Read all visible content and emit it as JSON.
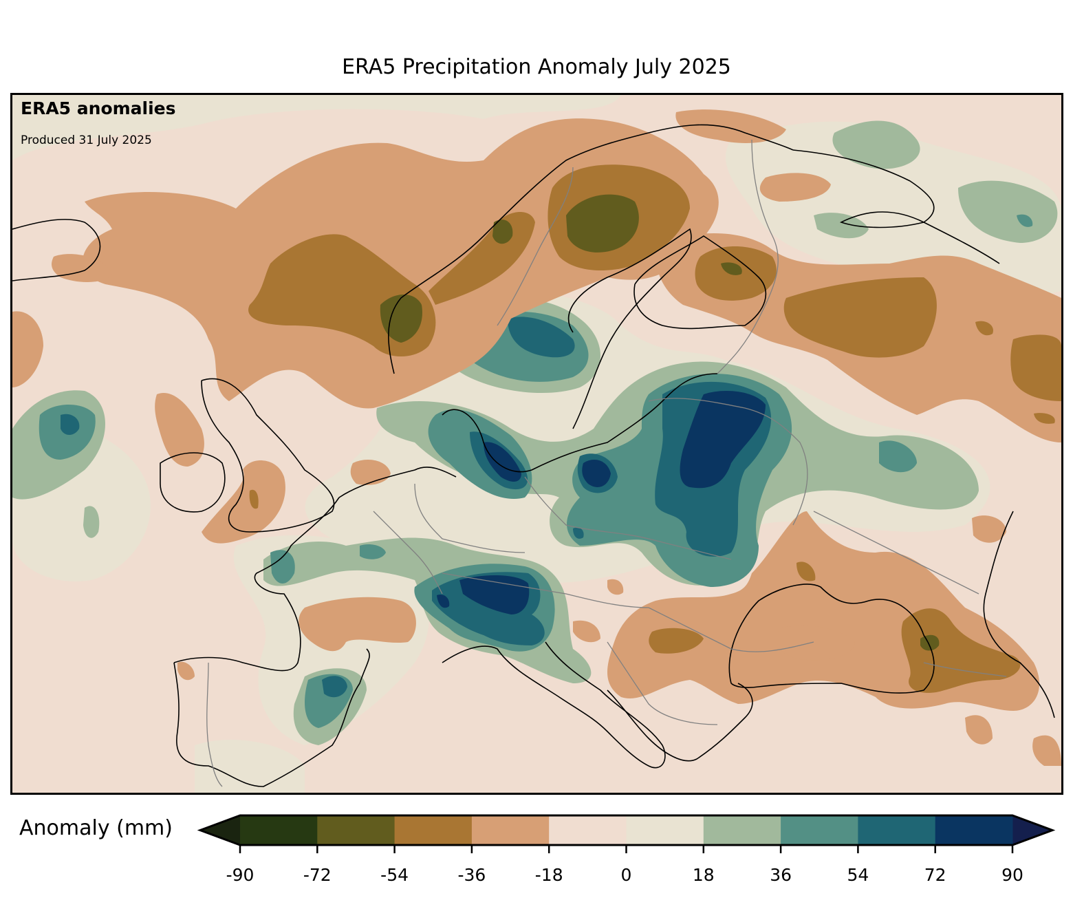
{
  "title": "ERA5 Precipitation Anomaly July 2025",
  "annotation": {
    "heading": "ERA5 anomalies",
    "produced": "Produced 31 July 2025"
  },
  "colorbar": {
    "label": "Anomaly (mm)",
    "extend": "both",
    "ticks": [
      -90,
      -72,
      -54,
      -36,
      -18,
      0,
      18,
      36,
      54,
      72,
      90
    ],
    "tick_labels": [
      "-90",
      "-72",
      "-54",
      "-36",
      "-18",
      "0",
      "18",
      "36",
      "54",
      "72",
      "90"
    ],
    "under_color": "#1a2410",
    "over_color": "#141f4d",
    "bins": [
      {
        "from": -90,
        "to": -72,
        "color": "#263912"
      },
      {
        "from": -72,
        "to": -54,
        "color": "#615c1e"
      },
      {
        "from": -54,
        "to": -36,
        "color": "#a97633"
      },
      {
        "from": -36,
        "to": -18,
        "color": "#d79f75"
      },
      {
        "from": -18,
        "to": 0,
        "color": "#f0ddd0"
      },
      {
        "from": 0,
        "to": 18,
        "color": "#e9e3d2"
      },
      {
        "from": 18,
        "to": 36,
        "color": "#a1b99c"
      },
      {
        "from": 36,
        "to": 54,
        "color": "#539085"
      },
      {
        "from": 54,
        "to": 72,
        "color": "#1f6674"
      },
      {
        "from": 72,
        "to": 90,
        "color": "#0a3561"
      }
    ]
  },
  "map": {
    "region": "Europe",
    "variable": "precipitation anomaly",
    "period": "July 2025",
    "coastline_color": "#000000",
    "border_color": "#808080"
  }
}
